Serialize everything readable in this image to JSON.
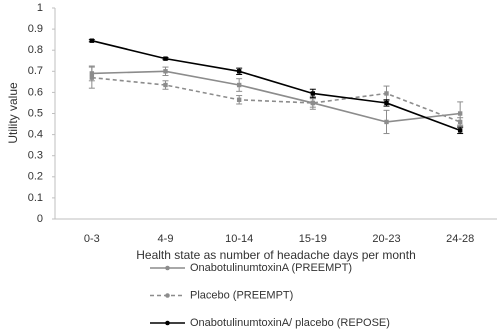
{
  "chart_data": {
    "type": "line",
    "xlabel": "Health state as number of headache days per month",
    "ylabel": "Utility value",
    "categories": [
      "0-3",
      "4-9",
      "10-14",
      "15-19",
      "20-23",
      "24-28"
    ],
    "ylim": [
      0,
      1
    ],
    "yticks": [
      0,
      0.1,
      0.2,
      0.3,
      0.4,
      0.5,
      0.6,
      0.7,
      0.8,
      0.9,
      1
    ],
    "grid": false,
    "legend": "bottom",
    "series": [
      {
        "name": "OnabotulinumtoxinA (PREEMPT)",
        "color": "#8c8c8c",
        "linestyle": "solid",
        "values": [
          0.69,
          0.7,
          0.635,
          0.55,
          0.46,
          0.5
        ],
        "errors": [
          0.035,
          0.02,
          0.03,
          0.03,
          0.055,
          0.055
        ]
      },
      {
        "name": "Placebo (PREEMPT)",
        "color": "#8c8c8c",
        "linestyle": "dashed",
        "values": [
          0.67,
          0.635,
          0.565,
          0.55,
          0.595,
          0.46
        ],
        "errors": [
          0.05,
          0.02,
          0.02,
          0.02,
          0.035,
          0.02
        ]
      },
      {
        "name": "OnabotulinumtoxinA/ placebo (REPOSE)",
        "color": "#000000",
        "linestyle": "solid",
        "values": [
          0.845,
          0.76,
          0.7,
          0.595,
          0.55,
          0.42
        ],
        "errors": [
          0.005,
          0.005,
          0.015,
          0.02,
          0.015,
          0.015
        ]
      }
    ]
  }
}
